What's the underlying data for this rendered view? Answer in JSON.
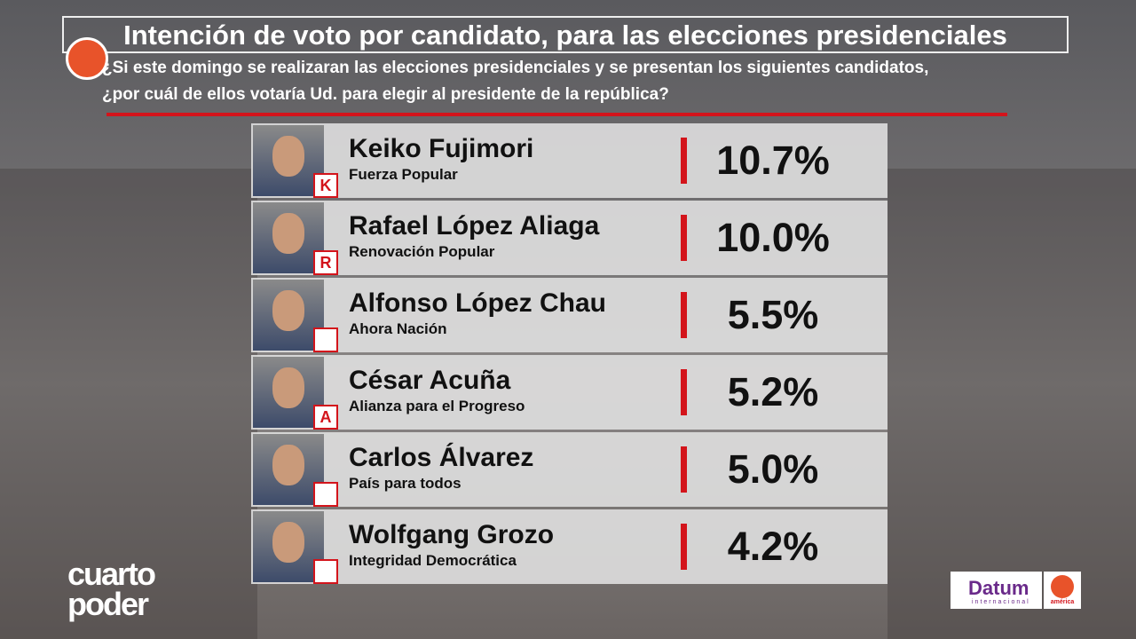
{
  "header": {
    "title": "Intención de voto por candidato, para las elecciones presidenciales",
    "question": [
      "¿Si este domingo se realizaran las elecciones presidenciales y se presentan los siguientes candidatos,",
      "¿por cuál de ellos votaría Ud. para elegir al presidente de la república?"
    ]
  },
  "rows": [
    {
      "name": "Keiko Fujimori",
      "party": "Fuerza Popular",
      "value": "10.7%",
      "badge": "K"
    },
    {
      "name": "Rafael López Aliaga",
      "party": "Renovación Popular",
      "value": "10.0%",
      "badge": "R"
    },
    {
      "name": "Alfonso López Chau",
      "party": "Ahora Nación",
      "value": "5.5%"
    },
    {
      "name": "César Acuña",
      "party": "Alianza para el Progreso",
      "value": "5.2%",
      "badge": "A"
    },
    {
      "name": "Carlos Álvarez",
      "party": "País para todos",
      "value": "5.0%"
    },
    {
      "name": "Wolfgang Grozo",
      "party": "Integridad Democrática",
      "value": "4.2%"
    }
  ],
  "logos": {
    "program": [
      "cuarto",
      "poder"
    ],
    "pollster": "Datum",
    "pollster_sub": "internacional",
    "channel": "américa"
  }
}
